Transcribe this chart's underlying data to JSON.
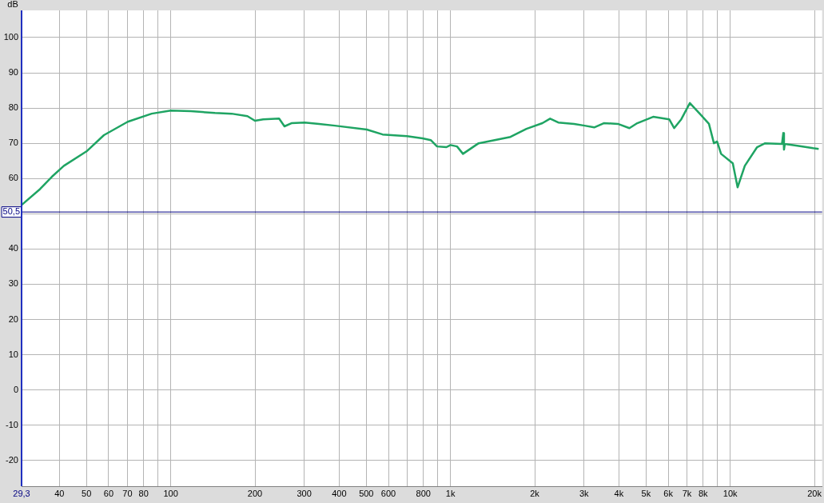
{
  "chart_data": {
    "type": "line",
    "ylabel": "dB",
    "x": [
      29.3,
      34.1,
      37.6,
      41.5,
      50,
      57.7,
      70.2,
      85.5,
      100,
      118,
      144,
      165,
      188,
      200,
      214,
      244,
      255,
      270,
      301,
      339,
      386,
      502,
      572,
      699,
      794,
      850,
      895,
      967,
      1000,
      1055,
      1108,
      1260,
      1437,
      1638,
      1868,
      2130,
      2270,
      2428,
      2767,
      3015,
      3263,
      3530,
      3965,
      4360,
      4650,
      5300,
      6050,
      6300,
      6680,
      7170,
      7860,
      8390,
      8740,
      8970,
      9270,
      10210,
      10620,
      11270,
      12470,
      13320,
      15300,
      15470,
      15560,
      15670,
      17370,
      19770,
      20700
    ],
    "series": [
      {
        "color": "#1fa463",
        "values": [
          52.5,
          57.0,
          60.5,
          63.6,
          67.7,
          72.3,
          76.1,
          78.4,
          79.3,
          79.1,
          78.6,
          78.4,
          77.7,
          76.4,
          76.8,
          77.0,
          74.8,
          75.7,
          75.9,
          75.5,
          75.0,
          73.9,
          72.5,
          72.0,
          71.4,
          70.9,
          69.1,
          68.9,
          69.5,
          69.1,
          67.0,
          70.0,
          70.9,
          71.8,
          74.1,
          75.7,
          77.0,
          75.9,
          75.5,
          75.0,
          74.5,
          75.7,
          75.5,
          74.3,
          75.7,
          77.5,
          76.8,
          74.3,
          76.8,
          81.4,
          78.0,
          75.5,
          70.0,
          70.5,
          67.0,
          64.3,
          57.5,
          63.6,
          68.9,
          70.0,
          69.8,
          72.9,
          68.2,
          69.8,
          69.3,
          68.6,
          68.4
        ]
      }
    ],
    "log": "x",
    "xlim": [
      29.3,
      21300
    ],
    "ylim": [
      -27.3,
      107.7
    ],
    "xticks": [
      {
        "value": 29.3,
        "label": "29,3"
      },
      40,
      50,
      60,
      70,
      80,
      {
        "value": 90,
        "label": null
      },
      100,
      200,
      300,
      400,
      500,
      600,
      {
        "value": 700,
        "label": null
      },
      800,
      {
        "value": 900,
        "label": null
      },
      {
        "value": 1000,
        "label": "1k"
      },
      {
        "value": 2000,
        "label": "2k"
      },
      {
        "value": 3000,
        "label": "3k"
      },
      {
        "value": 4000,
        "label": "4k"
      },
      {
        "value": 5000,
        "label": "5k"
      },
      {
        "value": 6000,
        "label": "6k"
      },
      {
        "value": 7000,
        "label": "7k"
      },
      {
        "value": 8000,
        "label": "8k"
      },
      {
        "value": 9000,
        "label": null
      },
      {
        "value": 10000,
        "label": "10k"
      },
      {
        "value": 20000,
        "label": "20k"
      }
    ],
    "yticks": [
      -20,
      -10,
      0,
      10,
      20,
      30,
      40,
      {
        "value": 50,
        "label": null
      },
      60,
      70,
      80,
      90,
      100
    ],
    "ref_lines": [
      {
        "axis": "y",
        "value": 50.5,
        "label": "50,5",
        "color": "#000080"
      }
    ],
    "grid": true,
    "legend": false,
    "marker": "none",
    "line_style": "solid"
  }
}
